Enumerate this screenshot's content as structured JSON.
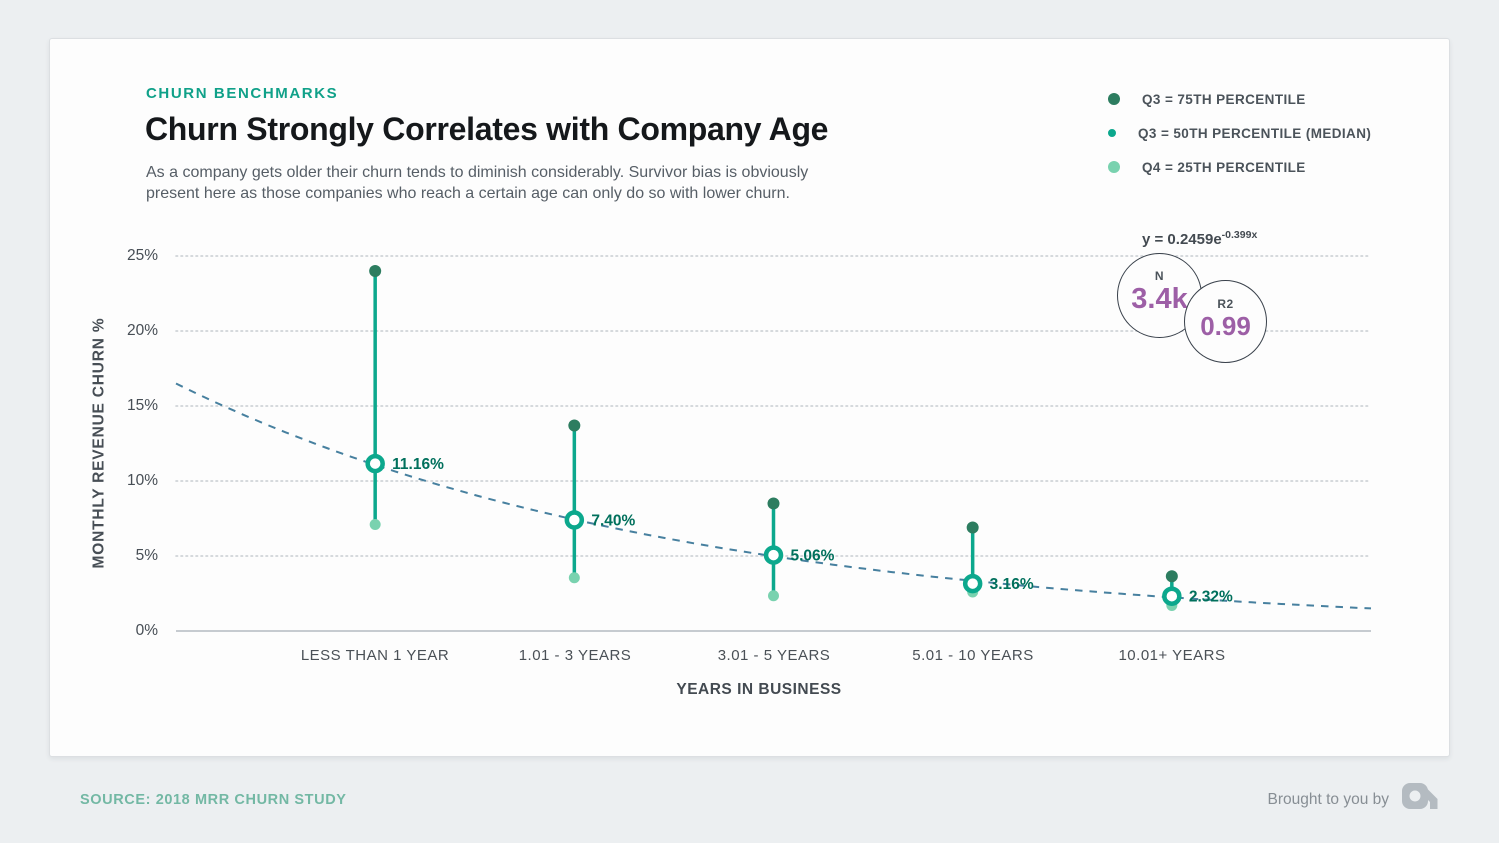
{
  "header": {
    "eyebrow": "CHURN BENCHMARKS",
    "title": "Churn Strongly Correlates with Company Age",
    "subtitle_line1": "As a company gets older their churn tends to diminish considerably. Survivor bias is obviously",
    "subtitle_line2": "present here as those companies who reach a certain age can only do so with lower churn."
  },
  "legend": {
    "items": [
      {
        "label": "Q3 = 75TH PERCENTILE",
        "marker": "dot-dark",
        "color": "#2d7d60"
      },
      {
        "label": "Q3 = 50TH PERCENTILE (MEDIAN)",
        "marker": "ring",
        "color": "#0ca88d"
      },
      {
        "label": "Q4 = 25TH PERCENTILE",
        "marker": "dot-light",
        "color": "#79d2af"
      }
    ],
    "equation_base": "y = 0.2459e",
    "equation_exponent": "-0.399x"
  },
  "stats": {
    "n_label": "N",
    "n_value": "3.4k",
    "r2_label": "R2",
    "r2_value": "0.99",
    "value_color": "#9d5fa6"
  },
  "chart_data": {
    "type": "scatter",
    "subtype": "range-dot-plot-with-exponential-trend",
    "categories": [
      "LESS THAN 1 YEAR",
      "1.01 - 3 YEARS",
      "3.01 - 5 YEARS",
      "5.01 - 10 YEARS",
      "10.01+ YEARS"
    ],
    "series": [
      {
        "name": "Q3 = 75TH PERCENTILE",
        "values": [
          24.0,
          13.7,
          8.5,
          6.9,
          3.65
        ],
        "color": "#2d7d60"
      },
      {
        "name": "Q3 = 50TH PERCENTILE (MEDIAN)",
        "values": [
          11.16,
          7.4,
          5.06,
          3.16,
          2.32
        ],
        "labels": [
          "11.16%",
          "7.40%",
          "5.06%",
          "3.16%",
          "2.32%"
        ],
        "color": "#0ca88d"
      },
      {
        "name": "Q4 = 25TH PERCENTILE",
        "values": [
          7.1,
          3.55,
          2.35,
          2.6,
          1.7
        ],
        "color": "#79d2af"
      }
    ],
    "trend": {
      "equation": "y = 0.2459e^-0.399x",
      "a": 0.2459,
      "b": -0.399,
      "color": "#47809f",
      "style": "dashed"
    },
    "title": "Churn Strongly Correlates with Company Age",
    "xlabel": "YEARS IN BUSINESS",
    "ylabel": "MONTHLY REVENUE CHURN %",
    "yticks": [
      "25%",
      "20%",
      "15%",
      "10%",
      "5%",
      "0%"
    ],
    "ytick_values": [
      25,
      20,
      15,
      10,
      5,
      0
    ],
    "ylim": [
      0,
      25
    ],
    "grid": true,
    "legend_position": "top-right",
    "annotations": {
      "n": "3.4k",
      "r2": "0.99"
    }
  },
  "footer": {
    "source": "SOURCE: 2018 MRR CHURN STUDY",
    "brought_by": "Brought to you by",
    "logo": "profitwell-logo"
  },
  "colors": {
    "accent_teal": "#0ca88d",
    "dark_dot": "#2d7d60",
    "light_dot": "#79d2af",
    "value_label": "#00705c",
    "trend_line": "#47809f",
    "stat_value_purple": "#9d5fa6",
    "source_text": "#73b8a4",
    "page_background": "#eceff1",
    "card_background": "#fdfdfd"
  }
}
